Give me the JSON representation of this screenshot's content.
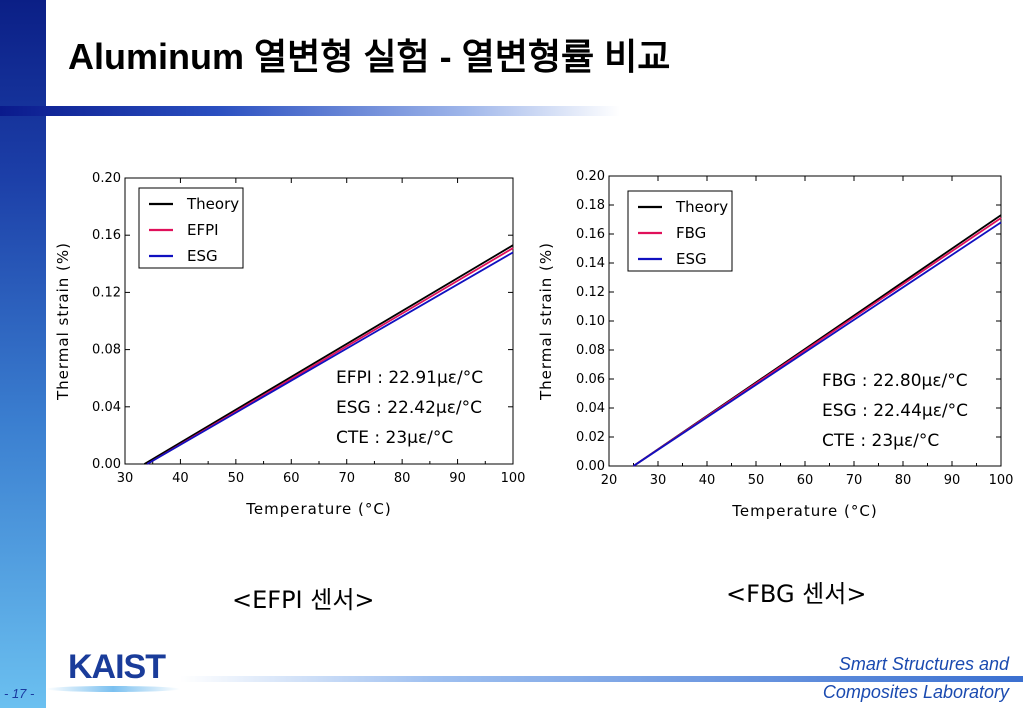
{
  "title": "Aluminum 열변형 실험 - 열변형률 비교",
  "page_number": "- 17 -",
  "logo_text": "KAIST",
  "lab": {
    "line1": "Smart Structures and",
    "line2": "Composites Laboratory"
  },
  "colors": {
    "theory": "#000000",
    "sensor": "#e0105a",
    "esg": "#1010c0"
  },
  "chart_data": [
    {
      "type": "line",
      "caption": "<EFPI 센서>",
      "xlabel": "Temperature (°C)",
      "ylabel": "Thermal strain (%)",
      "xlim": [
        30,
        100
      ],
      "ylim": [
        0,
        0.2
      ],
      "xticks": [
        "30",
        "40",
        "50",
        "60",
        "70",
        "80",
        "90",
        "100"
      ],
      "yticks": [
        "0.00",
        "0.04",
        "0.08",
        "0.12",
        "0.16",
        "0.20"
      ],
      "legend": {
        "placement": "top-left",
        "entries": [
          "Theory",
          "EFPI",
          "ESG"
        ]
      },
      "series": [
        {
          "name": "Theory",
          "color": "#000000",
          "points": [
            [
              33.5,
              0.0
            ],
            [
              100,
              0.153
            ]
          ]
        },
        {
          "name": "EFPI",
          "color": "#e0105a",
          "points": [
            [
              34.0,
              0.0
            ],
            [
              100,
              0.151
            ]
          ]
        },
        {
          "name": "ESG",
          "color": "#1010c0",
          "points": [
            [
              34.0,
              0.0
            ],
            [
              100,
              0.148
            ]
          ]
        }
      ],
      "annotations": [
        "EFPI : 22.91με/°C",
        "ESG : 22.42με/°C",
        "CTE : 23με/°C"
      ]
    },
    {
      "type": "line",
      "caption": "<FBG 센서>",
      "xlabel": "Temperature (°C)",
      "ylabel": "Thermal strain (%)",
      "xlim": [
        20,
        100
      ],
      "ylim": [
        0,
        0.2
      ],
      "xticks": [
        "20",
        "30",
        "40",
        "50",
        "60",
        "70",
        "80",
        "90",
        "100"
      ],
      "yticks": [
        "0.00",
        "0.02",
        "0.04",
        "0.06",
        "0.08",
        "0.10",
        "0.12",
        "0.14",
        "0.16",
        "0.18",
        "0.20"
      ],
      "legend": {
        "placement": "top-left",
        "entries": [
          "Theory",
          "FBG",
          "ESG"
        ]
      },
      "series": [
        {
          "name": "Theory",
          "color": "#000000",
          "points": [
            [
              25.0,
              0.0
            ],
            [
              100,
              0.173
            ]
          ]
        },
        {
          "name": "FBG",
          "color": "#e0105a",
          "points": [
            [
              25.0,
              0.0
            ],
            [
              100,
              0.171
            ]
          ]
        },
        {
          "name": "ESG",
          "color": "#1010c0",
          "points": [
            [
              25.0,
              0.0
            ],
            [
              100,
              0.168
            ]
          ]
        }
      ],
      "annotations": [
        "FBG : 22.80με/°C",
        "ESG : 22.44με/°C",
        "CTE : 23με/°C"
      ]
    }
  ]
}
